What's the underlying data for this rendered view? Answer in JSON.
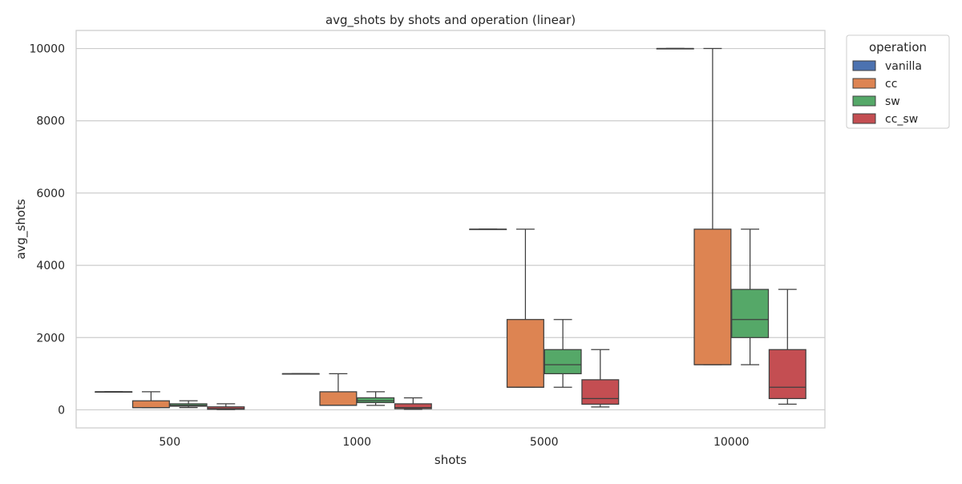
{
  "chart_data": {
    "type": "box",
    "title": "avg_shots by shots and operation (linear)",
    "xlabel": "shots",
    "ylabel": "avg_shots",
    "categories": [
      "500",
      "1000",
      "5000",
      "10000"
    ],
    "ylim": [
      -500,
      10500
    ],
    "yticks": [
      0,
      2000,
      4000,
      6000,
      8000,
      10000
    ],
    "grid": true,
    "legend": {
      "title": "operation",
      "placement": "outside-top-right"
    },
    "series": [
      {
        "name": "vanilla",
        "color": "#4c72b0",
        "boxes": [
          {
            "min": 500,
            "q1": 500,
            "median": 500,
            "q3": 500,
            "max": 500
          },
          {
            "min": 1000,
            "q1": 1000,
            "median": 1000,
            "q3": 1000,
            "max": 1000
          },
          {
            "min": 5000,
            "q1": 5000,
            "median": 5000,
            "q3": 5000,
            "max": 5000
          },
          {
            "min": 10000,
            "q1": 10000,
            "median": 10000,
            "q3": 10000,
            "max": 10000
          }
        ]
      },
      {
        "name": "cc",
        "color": "#dd8452",
        "boxes": [
          {
            "min": 62,
            "q1": 62,
            "median": 62,
            "q3": 250,
            "max": 500
          },
          {
            "min": 125,
            "q1": 125,
            "median": 125,
            "q3": 500,
            "max": 1000
          },
          {
            "min": 625,
            "q1": 625,
            "median": 625,
            "q3": 2500,
            "max": 5000
          },
          {
            "min": 1250,
            "q1": 1250,
            "median": 1250,
            "q3": 5000,
            "max": 10000
          }
        ]
      },
      {
        "name": "sw",
        "color": "#55a868",
        "boxes": [
          {
            "min": 62,
            "q1": 100,
            "median": 125,
            "q3": 167,
            "max": 250
          },
          {
            "min": 125,
            "q1": 200,
            "median": 250,
            "q3": 333,
            "max": 500
          },
          {
            "min": 625,
            "q1": 1000,
            "median": 1250,
            "q3": 1667,
            "max": 2500
          },
          {
            "min": 1250,
            "q1": 2000,
            "median": 2500,
            "q3": 3333,
            "max": 5000
          }
        ]
      },
      {
        "name": "cc_sw",
        "color": "#c44e52",
        "boxes": [
          {
            "min": 8,
            "q1": 16,
            "median": 31,
            "q3": 83,
            "max": 167
          },
          {
            "min": 16,
            "q1": 31,
            "median": 62,
            "q3": 167,
            "max": 333
          },
          {
            "min": 78,
            "q1": 156,
            "median": 312,
            "q3": 833,
            "max": 1667
          },
          {
            "min": 156,
            "q1": 312,
            "median": 625,
            "q3": 1667,
            "max": 3333
          }
        ]
      }
    ]
  }
}
